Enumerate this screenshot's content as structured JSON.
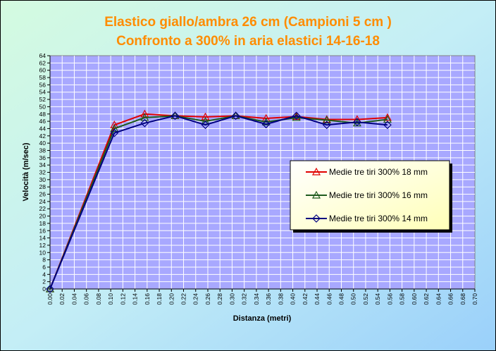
{
  "chart_data": {
    "type": "line",
    "title_line1": "Elastico giallo/ambra  26 cm (Campioni 5 cm )",
    "title_line2": "Confronto a 300% in aria elastici 14-16-18",
    "xlabel": "Distanza (metri)",
    "ylabel": "Velocità (m/sec)",
    "xlim": [
      0,
      0.7
    ],
    "ylim": [
      0,
      64
    ],
    "x_ticks": [
      "0.00",
      "0.02",
      "0.04",
      "0.06",
      "0.08",
      "0.10",
      "0.12",
      "0.14",
      "0.16",
      "0.18",
      "0.20",
      "0.22",
      "0.24",
      "0.26",
      "0.28",
      "0.30",
      "0.32",
      "0.34",
      "0.36",
      "0.38",
      "0.40",
      "0.42",
      "0.44",
      "0.46",
      "0.48",
      "0.50",
      "0.52",
      "0.54",
      "0.56",
      "0.58",
      "0.60",
      "0.62",
      "0.64",
      "0.66",
      "0.68",
      "0.70"
    ],
    "y_ticks": [
      "0",
      "2",
      "4",
      "6",
      "8",
      "10",
      "12",
      "14",
      "16",
      "18",
      "20",
      "22",
      "24",
      "26",
      "28",
      "30",
      "32",
      "34",
      "36",
      "38",
      "40",
      "42",
      "44",
      "46",
      "48",
      "50",
      "52",
      "54",
      "56",
      "58",
      "60",
      "62",
      "64"
    ],
    "grid": true,
    "legend_position": "right",
    "x": [
      0,
      0.106,
      0.156,
      0.206,
      0.256,
      0.306,
      0.356,
      0.406,
      0.456,
      0.506,
      0.556
    ],
    "series": [
      {
        "name": "Medie tre tiri 300% 18 mm",
        "color": "#e00000",
        "marker": "triangle",
        "values": [
          0,
          45.0,
          48.0,
          47.5,
          47.2,
          47.5,
          46.8,
          47.3,
          46.5,
          46.5,
          47.0
        ]
      },
      {
        "name": "Medie tre tiri 300% 16 mm",
        "color": "#1e5a1e",
        "marker": "triangle",
        "values": [
          0,
          44.0,
          47.0,
          47.5,
          46.0,
          47.5,
          45.8,
          47.0,
          46.3,
          45.5,
          46.5
        ]
      },
      {
        "name": "Medie tre tiri 300% 14 mm",
        "color": "#000080",
        "marker": "diamond",
        "values": [
          0,
          42.8,
          45.5,
          47.5,
          45.0,
          47.5,
          45.2,
          47.5,
          45.0,
          45.8,
          45.0
        ]
      }
    ]
  },
  "colors": {
    "plot_background": "#a8a8ff",
    "grid": "#ffffff",
    "title": "#ff8c00",
    "legend_background": "#ffffcc"
  }
}
